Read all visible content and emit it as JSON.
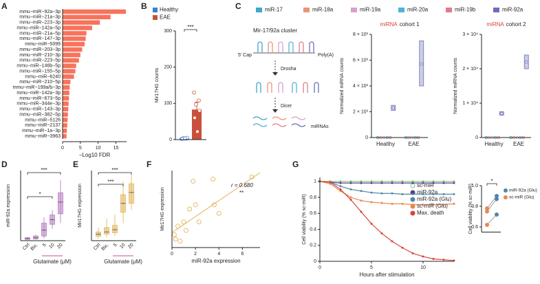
{
  "chart_data": [
    {
      "label": "A",
      "type": "hbar",
      "categories": [
        "mmu−miR−92a−3p",
        "mmu−miR−21a−3p",
        "mmu−miR−223−3p",
        "mmu−miR−142a−5p",
        "mmu−miR−21a−5p",
        "mmu−miR−147−3p",
        "mmu−miR−5099",
        "mmu−miR−203−3p",
        "mmu−miR−210−3p",
        "mmu−miR−223−5p",
        "mmu−miR−146b−5p",
        "mmu−miR−155−5p",
        "mmu−miR−6240",
        "mmu−miR−210−5p",
        "mmu−miR−199a/b−3p",
        "mmu−miR−142a−3p",
        "mmu−miR−673−5p",
        "mmu−miR−344e−3p",
        "mmu−miR−143−3p",
        "mmu−miR−382−5p",
        "mmu−miR−5126",
        "mmu−miR−2137",
        "mmu−miR−1a−3p",
        "mmu−miR−3963"
      ],
      "values": [
        17.8,
        13.5,
        10.5,
        8.3,
        6.7,
        6.5,
        6.2,
        5.5,
        5.0,
        4.6,
        3.8,
        3.6,
        3.2,
        2.2,
        2.0,
        1.9,
        1.8,
        1.7,
        1.6,
        1.5,
        1.4,
        1.3,
        1.2,
        1.1
      ],
      "color": "#f7735c",
      "xlim": [
        0,
        18
      ],
      "xticks": [
        0,
        5,
        10,
        15
      ],
      "xlabel": "−Log10 FDR"
    },
    {
      "label": "B",
      "type": "bar_points",
      "series": [
        {
          "name": "Healthy",
          "color": "#3b7fd4",
          "value": 3,
          "error": 1,
          "points": [
            2,
            3,
            4,
            5,
            2,
            3
          ]
        },
        {
          "name": "EAE",
          "color": "#c9503c",
          "value": 83,
          "error": 20,
          "points": [
            130,
            108,
            97,
            80,
            60,
            22
          ]
        }
      ],
      "ylim": [
        0,
        300
      ],
      "yticks": [
        0,
        100,
        200,
        300
      ],
      "ylabel": "Mir17HG counts",
      "significance": "***"
    },
    {
      "label": "C",
      "type": "strip",
      "title_highlight": "miRNA",
      "title": "cohort 1",
      "categories": [
        "Healthy",
        "EAE"
      ],
      "series": [
        {
          "name": "miR-17",
          "color": "#3fa7c8",
          "values": [
            0,
            0
          ]
        },
        {
          "name": "miR-18a",
          "color": "#e8967a",
          "values": [
            0,
            0
          ]
        },
        {
          "name": "miR-19a",
          "color": "#d9a0d0",
          "values": [
            0,
            0
          ]
        },
        {
          "name": "miR-20a",
          "color": "#4fb3d9",
          "values": [
            0,
            0
          ]
        },
        {
          "name": "miR-19b",
          "color": "#e07b8a",
          "values": [
            0,
            0
          ]
        },
        {
          "name": "miR-92a",
          "color": "#6b6fb8",
          "values": [
            2300,
            5700
          ],
          "low": [
            2100,
            4000
          ],
          "high": [
            2500,
            7500
          ]
        }
      ],
      "ylim": [
        0,
        8000
      ],
      "yticks": [
        0,
        {
          "value": 2000,
          "label": "2 × 10³"
        },
        {
          "value": 4000,
          "label": "4 × 10³"
        },
        {
          "value": 6000,
          "label": "6 × 10³"
        },
        {
          "value": 8000,
          "label": "8 × 10³"
        }
      ],
      "ylabel": "Normalized miRNA counts"
    },
    {
      "type": "strip",
      "title_highlight": "miRNA",
      "title": "cohort 2",
      "categories": [
        "Healthy",
        "EAE"
      ],
      "series": [
        {
          "color": "#3fa7c8",
          "values": [
            0,
            0
          ]
        },
        {
          "color": "#e8967a",
          "values": [
            0,
            0
          ]
        },
        {
          "color": "#d9a0d0",
          "values": [
            0,
            0
          ]
        },
        {
          "color": "#4fb3d9",
          "values": [
            0,
            0
          ]
        },
        {
          "color": "#e07b8a",
          "values": [
            0,
            0
          ]
        },
        {
          "color": "#6b6fb8",
          "values": [
            7000,
            22000
          ],
          "low": [
            6500,
            20000
          ],
          "high": [
            7500,
            24000
          ]
        }
      ],
      "ylim": [
        0,
        30000
      ],
      "yticks": [
        0,
        {
          "value": 10000,
          "label": "1 × 10⁴"
        },
        {
          "value": 20000,
          "label": "2 × 10⁴"
        },
        {
          "value": 30000,
          "label": "3 × 10⁴"
        }
      ],
      "ylabel": "Normalized miRNA counts"
    },
    {
      "label": "D",
      "type": "box",
      "categories": [
        "Ctrl",
        "Bic.",
        "5",
        "10",
        "20"
      ],
      "min": [
        0.05,
        0.1,
        0.2,
        1.0,
        1.5
      ],
      "q1": [
        0.1,
        0.15,
        0.4,
        1.4,
        2.3
      ],
      "median": [
        0.2,
        0.25,
        0.9,
        1.8,
        3.3
      ],
      "q3": [
        0.25,
        0.4,
        1.5,
        2.2,
        4.1
      ],
      "max": [
        0.3,
        0.5,
        2.0,
        2.6,
        5.2
      ],
      "color": "#b57cc2",
      "ylim": [
        0,
        6
      ],
      "ylabel": "miR-92a expression",
      "xlabel": "Glutamate (μM)",
      "significance": [
        "***",
        "*"
      ]
    },
    {
      "label": "E",
      "type": "box",
      "categories": [
        "Ctrl",
        "Bic.",
        "5",
        "10",
        "20"
      ],
      "min": [
        0.5,
        0.8,
        1.0,
        4,
        7
      ],
      "q1": [
        1,
        1.5,
        1.8,
        6.5,
        8.5
      ],
      "median": [
        1.5,
        2,
        2.5,
        8.5,
        11
      ],
      "q3": [
        2,
        3,
        3.5,
        10.5,
        13
      ],
      "max": [
        3,
        5,
        6,
        13.5,
        15
      ],
      "color": "#e3b65e",
      "ylim": [
        0,
        16
      ],
      "ylabel": "Mir17HG expression",
      "xlabel": "Glutamate (μM)",
      "significance": [
        "***",
        "***"
      ]
    },
    {
      "label": "F",
      "type": "scatter",
      "x": [
        0.2,
        0.3,
        0.5,
        0.7,
        1.0,
        1.2,
        1.5,
        1.8,
        2.0,
        2.3,
        3.5,
        3.6,
        4.0,
        6.8
      ],
      "y": [
        3,
        2,
        5,
        1.5,
        6,
        4,
        9,
        15.5,
        10,
        6,
        16,
        10,
        8,
        16.5
      ],
      "color": "#e0b45c",
      "xlim": [
        0,
        7.5
      ],
      "xticks": [
        0,
        2,
        4,
        6
      ],
      "ylim": [
        0,
        18
      ],
      "xlabel": "miR-92a expression",
      "ylabel": "Mir17HG expression",
      "annotation": "r = 0.680",
      "significance": "**",
      "fit": {
        "x": [
          0,
          7.5
        ],
        "y": [
          3.5,
          17.5
        ]
      }
    },
    {
      "label": "G",
      "type": "line",
      "x": [
        0,
        1,
        2,
        3,
        4,
        5,
        6,
        7,
        8,
        9,
        10,
        11,
        12,
        13
      ],
      "series": [
        {
          "name": "sc-miR",
          "color": "#7cc27c",
          "values": [
            1.0,
            1.0,
            1.0,
            1.0,
            1.0,
            1.0,
            1.0,
            1.0,
            1.0,
            1.0,
            1.0,
            1.0,
            1.0,
            1.0
          ]
        },
        {
          "name": "miR-92a",
          "color": "#5b3f8a",
          "values": [
            1.0,
            0.99,
            0.98,
            0.98,
            0.98,
            0.98,
            0.98,
            0.98,
            0.98,
            0.98,
            0.98,
            0.98,
            0.98,
            0.98
          ]
        },
        {
          "name": "miR-92a (Glu)",
          "color": "#4f86a8",
          "values": [
            1.0,
            0.99,
            0.94,
            0.9,
            0.88,
            0.86,
            0.85,
            0.85,
            0.84,
            0.84,
            0.84,
            0.84,
            0.84,
            0.84
          ]
        },
        {
          "name": "sc-miR (Glu)",
          "color": "#e8874f",
          "values": [
            1.0,
            0.97,
            0.88,
            0.8,
            0.76,
            0.74,
            0.73,
            0.72,
            0.72,
            0.71,
            0.71,
            0.71,
            0.71,
            0.72
          ]
        },
        {
          "name": "Max. death",
          "color": "#d9413a",
          "values": [
            1.0,
            0.99,
            0.9,
            0.77,
            0.62,
            0.47,
            0.35,
            0.25,
            0.17,
            0.1,
            0.06,
            0.03,
            0.02,
            0.01
          ]
        }
      ],
      "xlim": [
        0,
        13
      ],
      "xticks": [
        0,
        5,
        10
      ],
      "ylim": [
        0,
        1.05
      ],
      "yticks": [
        0,
        0.2,
        0.4,
        0.6,
        0.8,
        1
      ],
      "xlabel": "Hours after stimulation",
      "ylabel": "Cell viability (% sc-miR)"
    },
    {
      "type": "paired",
      "series": [
        {
          "name": "miR-92a (Glu)",
          "color": "#4f86a8",
          "values": [
            0.72,
            0.87,
            0.9
          ]
        },
        {
          "name": "sc-miR (Glu)",
          "color": "#e8874f",
          "values": [
            0.62,
            0.75,
            0.78
          ]
        }
      ],
      "ylim": [
        0.55,
        1.0
      ],
      "yticks": [
        0.6,
        0.8,
        {
          "value": 1.0,
          "label": "1.0"
        }
      ],
      "ylabel": "Cell viability (% sc-miR)",
      "significance": "*"
    }
  ],
  "diagram": {
    "title": "Mir-17/92a cluster",
    "cap": "5′ Cap",
    "polya": "Poly(A)",
    "step1": "Drosha",
    "step2": "Dicer",
    "product": "miRNAs"
  }
}
